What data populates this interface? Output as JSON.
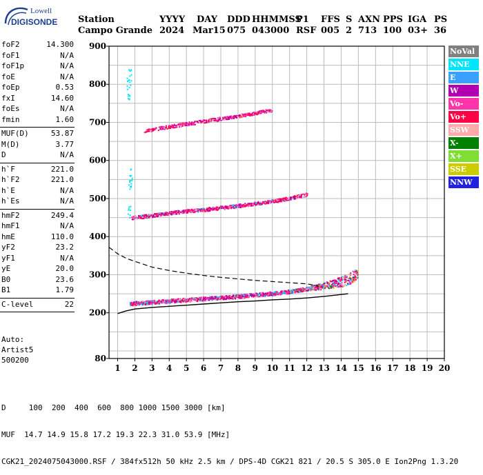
{
  "logo": {
    "brand": "Lowell",
    "name": "DIGISONDE"
  },
  "header": {
    "labels": [
      "Station",
      "YYYY",
      "DAY",
      "DDD",
      "HHMMSS",
      "P1",
      "FFS",
      "S",
      "AXN",
      "PPS",
      "IGA",
      "PS"
    ],
    "values": [
      "Campo Grande",
      "2024",
      "Mar15",
      "075",
      "043000",
      "RSF",
      "005",
      "2",
      "713",
      "100",
      "03+",
      "36"
    ]
  },
  "params": {
    "group1": [
      {
        "label": "foF2",
        "value": "14.300"
      },
      {
        "label": "foF1",
        "value": "N/A"
      },
      {
        "label": "foF1p",
        "value": "N/A"
      },
      {
        "label": "foE",
        "value": "N/A"
      },
      {
        "label": "foEp",
        "value": "0.53"
      },
      {
        "label": "fxI",
        "value": "14.60"
      },
      {
        "label": "foEs",
        "value": "N/A"
      },
      {
        "label": "fmin",
        "value": "1.60"
      }
    ],
    "group2": [
      {
        "label": "MUF(D)",
        "value": "53.87"
      },
      {
        "label": "M(D)",
        "value": "3.77"
      },
      {
        "label": "D",
        "value": "N/A"
      }
    ],
    "group3": [
      {
        "label": "h`F",
        "value": "221.0"
      },
      {
        "label": "h`F2",
        "value": "221.0"
      },
      {
        "label": "h`E",
        "value": "N/A"
      },
      {
        "label": "h`Es",
        "value": "N/A"
      }
    ],
    "group4": [
      {
        "label": "hmF2",
        "value": "249.4"
      },
      {
        "label": "hmF1",
        "value": "N/A"
      },
      {
        "label": "hmE",
        "value": "110.0"
      },
      {
        "label": "yF2",
        "value": "23.2"
      },
      {
        "label": "yF1",
        "value": "N/A"
      },
      {
        "label": "yE",
        "value": "20.0"
      },
      {
        "label": "B0",
        "value": "23.6"
      },
      {
        "label": "B1",
        "value": "1.79"
      }
    ],
    "group5": [
      {
        "label": "C-level",
        "value": "22"
      }
    ]
  },
  "autoscale": {
    "line1": "Auto:",
    "line2": "Artist5",
    "line3": "500200"
  },
  "legend": [
    {
      "label": "NoVal",
      "color": "#808080"
    },
    {
      "label": "NNE",
      "color": "#00e5ff"
    },
    {
      "label": "E",
      "color": "#3aa0ff"
    },
    {
      "label": "W",
      "color": "#b000b0"
    },
    {
      "label": "Vo-",
      "color": "#ff33aa"
    },
    {
      "label": "Vo+",
      "color": "#ff0044"
    },
    {
      "label": "SSW",
      "color": "#ffaaaa"
    },
    {
      "label": "X-",
      "color": "#008000"
    },
    {
      "label": "X+",
      "color": "#80dd33"
    },
    {
      "label": "SSE",
      "color": "#cccc00"
    },
    {
      "label": "NNW",
      "color": "#2222dd"
    }
  ],
  "bottom": {
    "line1": "D     100  200  400  600  800 1000 1500 3000 [km]",
    "line2": "MUF  14.7 14.9 15.8 17.2 19.3 22.3 31.0 53.9 [MHz]",
    "line3": "CGK21_2024075043000.RSF / 384fx512h 50 kHz 2.5 km / DPS-4D CGK21 821 / 20.5 S 305.0 E Ion2Png 1.3.20"
  },
  "chart_data": {
    "type": "scatter",
    "xlabel": "",
    "ylabel": "",
    "xlim": [
      0.5,
      20
    ],
    "ylim": [
      80,
      900
    ],
    "x_ticks": [
      1,
      2,
      3,
      4,
      5,
      6,
      7,
      8,
      9,
      10,
      11,
      12,
      13,
      14,
      15,
      16,
      17,
      18,
      19,
      20
    ],
    "y_ticks": [
      80,
      200,
      300,
      400,
      500,
      600,
      700,
      800,
      900
    ],
    "grid": true,
    "legend_position": "right",
    "series": [
      {
        "trace": "F2 first-hop",
        "x": [
          1.7,
          2.0,
          3.0,
          4.0,
          5.0,
          6.0,
          7.0,
          8.0,
          9.0,
          10.0,
          11.0,
          12.0,
          13.0,
          14.0,
          14.5,
          15.0
        ],
        "y": [
          224,
          226,
          229,
          232,
          235,
          238,
          241,
          244,
          248,
          252,
          257,
          264,
          272,
          283,
          292,
          305
        ]
      },
      {
        "trace": "F2 second-hop",
        "x": [
          1.8,
          2.5,
          3.0,
          4.0,
          5.0,
          6.0,
          7.0,
          8.0,
          9.0,
          10.0,
          11.0,
          12.0
        ],
        "y": [
          450,
          454,
          457,
          463,
          468,
          472,
          477,
          482,
          488,
          494,
          502,
          512
        ]
      },
      {
        "trace": "F2 third-hop",
        "x": [
          2.5,
          3.0,
          4.0,
          5.0,
          6.0,
          7.0,
          8.0,
          9.0,
          10.0
        ],
        "y": [
          678,
          682,
          690,
          697,
          704,
          711,
          718,
          726,
          734
        ]
      },
      {
        "trace": "spread echoes",
        "x": [
          1.6,
          1.65,
          1.7,
          1.75,
          1.7,
          1.65
        ],
        "y": [
          800,
          780,
          820,
          560,
          530,
          470
        ]
      }
    ],
    "profile_line": {
      "x": [
        1.0,
        1.5,
        2.0,
        3.0,
        4.0,
        5.0,
        6.0,
        7.0,
        8.0,
        9.0,
        10.0,
        11.0,
        12.0,
        13.0,
        14.0,
        14.4
      ],
      "y": [
        198,
        205,
        210,
        214,
        217,
        220,
        223,
        226,
        229,
        231,
        234,
        236,
        239,
        243,
        248,
        250
      ]
    },
    "muf_curve": {
      "x": [
        0.5,
        1.0,
        1.5,
        2.0,
        3.0,
        4.0,
        5.0,
        6.0,
        7.0,
        8.0,
        9.0,
        10.0,
        11.0,
        12.0,
        12.7
      ],
      "y": [
        372,
        355,
        343,
        335,
        320,
        311,
        304,
        298,
        293,
        289,
        285,
        282,
        279,
        276,
        270
      ]
    }
  }
}
